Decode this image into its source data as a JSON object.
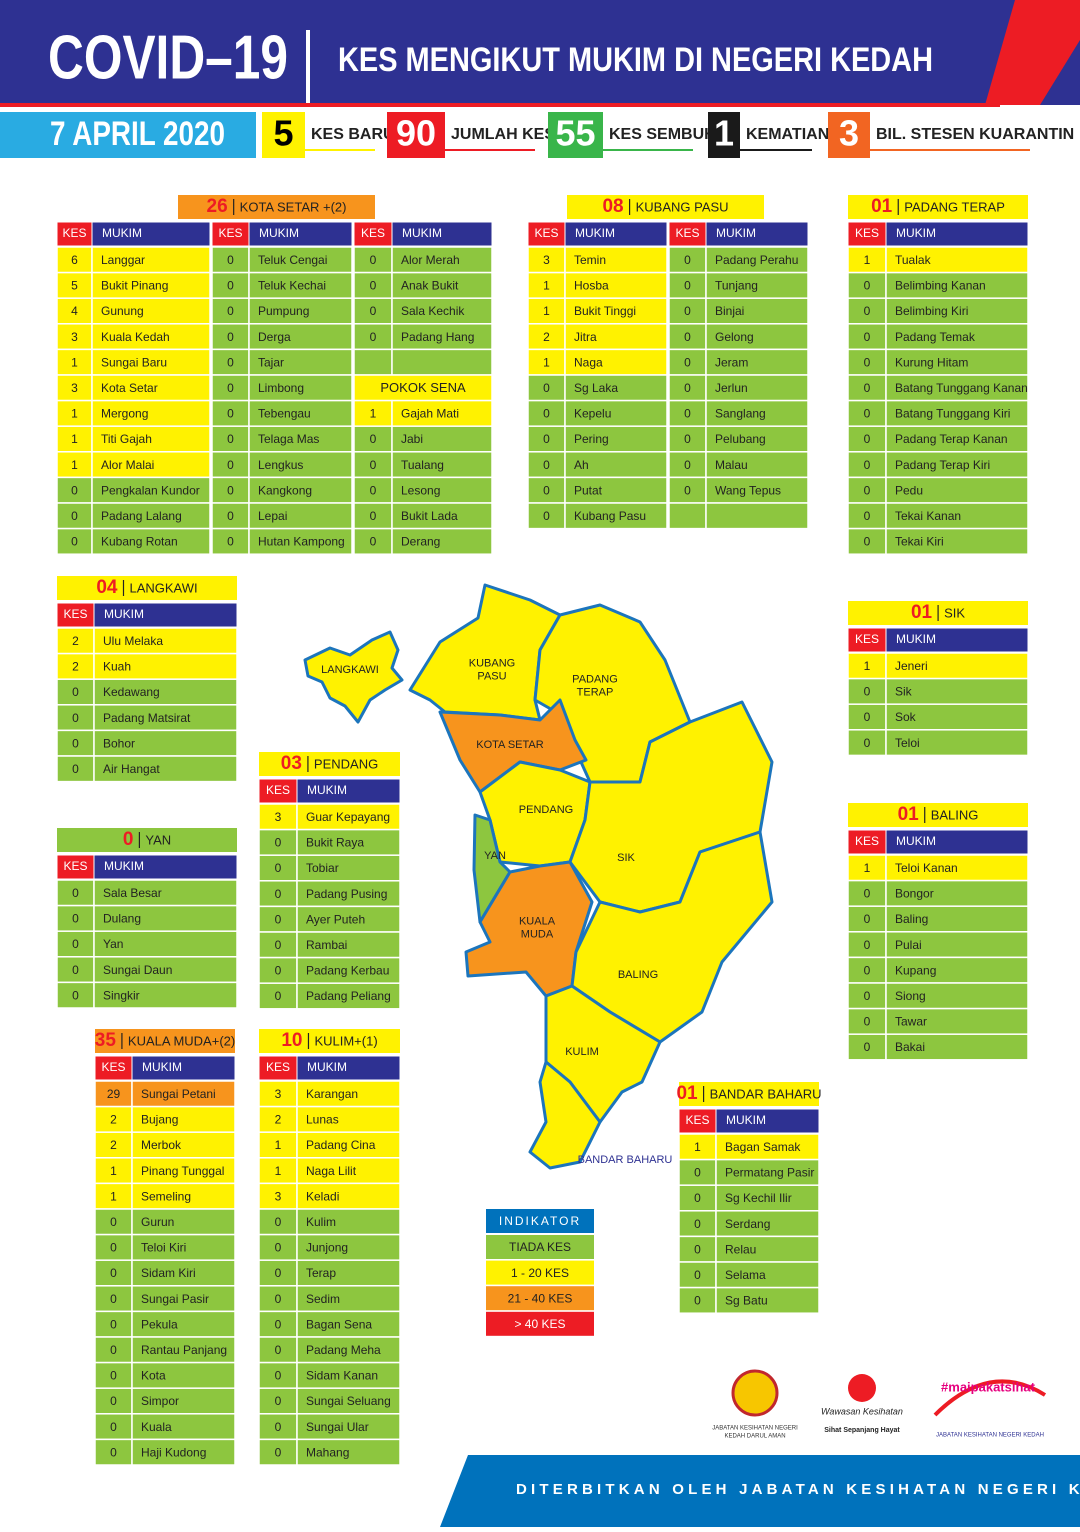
{
  "header": {
    "title": "COVID–19",
    "subtitle": "KES MENGIKUT MUKIM DI NEGERI KEDAH",
    "date": "7 APRIL 2020",
    "stats": [
      {
        "value": 5,
        "label": "KES BARU",
        "color": "#fff200",
        "text_color": "#000000"
      },
      {
        "value": 90,
        "label": "JUMLAH KES",
        "color": "#ed1c24",
        "text_color": "#ffffff"
      },
      {
        "value": 55,
        "label": "KES SEMBUH",
        "color": "#39b54a",
        "text_color": "#ffffff"
      },
      {
        "value": 1,
        "label": "KEMATIAN",
        "color": "#1a1a1a",
        "text_color": "#ffffff"
      },
      {
        "value": 3,
        "label": "BIL. STESEN KUARANTIN",
        "color": "#f26522",
        "text_color": "#ffffff"
      }
    ]
  },
  "column_headers": {
    "kes": "KES",
    "mukim": "MUKIM"
  },
  "districts": [
    {
      "count": "26",
      "name": "KOTA SETAR +(2)",
      "columns": [
        [
          [
            6,
            "Langgar"
          ],
          [
            5,
            "Bukit Pinang"
          ],
          [
            4,
            "Gunung"
          ],
          [
            3,
            "Kuala Kedah"
          ],
          [
            1,
            "Sungai Baru"
          ],
          [
            3,
            "Kota Setar"
          ],
          [
            1,
            "Mergong"
          ],
          [
            1,
            "Titi Gajah"
          ],
          [
            1,
            "Alor Malai"
          ],
          [
            0,
            "Pengkalan Kundor"
          ],
          [
            0,
            "Padang Lalang"
          ],
          [
            0,
            "Kubang Rotan"
          ]
        ],
        [
          [
            0,
            "Teluk Cengai"
          ],
          [
            0,
            "Teluk Kechai"
          ],
          [
            0,
            "Pumpung"
          ],
          [
            0,
            "Derga"
          ],
          [
            0,
            "Tajar"
          ],
          [
            0,
            "Limbong"
          ],
          [
            0,
            "Tebengau"
          ],
          [
            0,
            "Telaga Mas"
          ],
          [
            0,
            "Lengkus"
          ],
          [
            0,
            "Kangkong"
          ],
          [
            0,
            "Lepai"
          ],
          [
            0,
            "Hutan Kampong"
          ]
        ],
        [
          [
            0,
            "Alor Merah"
          ],
          [
            0,
            "Anak Bukit"
          ],
          [
            0,
            "Sala Kechik"
          ],
          [
            0,
            "Padang Hang"
          ],
          null,
          {
            "subheader": "POKOK SENA"
          },
          [
            1,
            "Gajah Mati"
          ],
          [
            0,
            "Jabi"
          ],
          [
            0,
            "Tualang"
          ],
          [
            0,
            "Lesong"
          ],
          [
            0,
            "Bukit Lada"
          ],
          [
            0,
            "Derang"
          ]
        ]
      ]
    },
    {
      "count": "08",
      "name": "KUBANG PASU",
      "columns": [
        [
          [
            3,
            "Temin"
          ],
          [
            1,
            "Hosba"
          ],
          [
            1,
            "Bukit Tinggi"
          ],
          [
            2,
            "Jitra"
          ],
          [
            1,
            "Naga"
          ],
          [
            0,
            "Sg Laka"
          ],
          [
            0,
            "Kepelu"
          ],
          [
            0,
            "Pering"
          ],
          [
            0,
            "Ah"
          ],
          [
            0,
            "Putat"
          ],
          [
            0,
            "Kubang Pasu"
          ]
        ],
        [
          [
            0,
            "Padang Perahu"
          ],
          [
            0,
            "Tunjang"
          ],
          [
            0,
            "Binjai"
          ],
          [
            0,
            "Gelong"
          ],
          [
            0,
            "Jeram"
          ],
          [
            0,
            "Jerlun"
          ],
          [
            0,
            "Sanglang"
          ],
          [
            0,
            "Pelubang"
          ],
          [
            0,
            "Malau"
          ],
          [
            0,
            "Wang Tepus"
          ],
          null
        ]
      ]
    },
    {
      "count": "01",
      "name": "PADANG TERAP",
      "columns": [
        [
          [
            1,
            "Tualak"
          ],
          [
            0,
            "Belimbing Kanan"
          ],
          [
            0,
            "Belimbing Kiri"
          ],
          [
            0,
            "Padang Temak"
          ],
          [
            0,
            "Kurung Hitam"
          ],
          [
            0,
            "Batang Tunggang Kanan"
          ],
          [
            0,
            "Batang Tunggang Kiri"
          ],
          [
            0,
            "Padang Terap Kanan"
          ],
          [
            0,
            "Padang Terap Kiri"
          ],
          [
            0,
            "Pedu"
          ],
          [
            0,
            "Tekai Kanan"
          ],
          [
            0,
            "Tekai Kiri"
          ]
        ]
      ]
    },
    {
      "count": "04",
      "name": "LANGKAWI",
      "columns": [
        [
          [
            2,
            "Ulu Melaka"
          ],
          [
            2,
            "Kuah"
          ],
          [
            0,
            "Kedawang"
          ],
          [
            0,
            "Padang Matsirat"
          ],
          [
            0,
            "Bohor"
          ],
          [
            0,
            "Air Hangat"
          ]
        ]
      ]
    },
    {
      "count": "01",
      "name": "SIK",
      "columns": [
        [
          [
            1,
            "Jeneri"
          ],
          [
            0,
            "Sik"
          ],
          [
            0,
            "Sok"
          ],
          [
            0,
            "Teloi"
          ]
        ]
      ]
    },
    {
      "count": "03",
      "name": "PENDANG",
      "columns": [
        [
          [
            3,
            "Guar Kepayang"
          ],
          [
            0,
            "Bukit Raya"
          ],
          [
            0,
            "Tobiar"
          ],
          [
            0,
            "Padang Pusing"
          ],
          [
            0,
            "Ayer Puteh"
          ],
          [
            0,
            "Rambai"
          ],
          [
            0,
            "Padang Kerbau"
          ],
          [
            0,
            "Padang Peliang"
          ]
        ]
      ]
    },
    {
      "count": "0",
      "name": "YAN",
      "columns": [
        [
          [
            0,
            "Sala Besar"
          ],
          [
            0,
            "Dulang"
          ],
          [
            0,
            "Yan"
          ],
          [
            0,
            "Sungai Daun"
          ],
          [
            0,
            "Singkir"
          ]
        ]
      ]
    },
    {
      "count": "01",
      "name": "BALING",
      "columns": [
        [
          [
            1,
            "Teloi Kanan"
          ],
          [
            0,
            "Bongor"
          ],
          [
            0,
            "Baling"
          ],
          [
            0,
            "Pulai"
          ],
          [
            0,
            "Kupang"
          ],
          [
            0,
            "Siong"
          ],
          [
            0,
            "Tawar"
          ],
          [
            0,
            "Bakai"
          ]
        ]
      ]
    },
    {
      "count": "35",
      "name": "KUALA MUDA+(2)",
      "columns": [
        [
          [
            29,
            "Sungai Petani"
          ],
          [
            2,
            "Bujang"
          ],
          [
            2,
            "Merbok"
          ],
          [
            1,
            "Pinang Tunggal"
          ],
          [
            1,
            "Semeling"
          ],
          [
            0,
            "Gurun"
          ],
          [
            0,
            "Teloi Kiri"
          ],
          [
            0,
            "Sidam Kiri"
          ],
          [
            0,
            "Sungai Pasir"
          ],
          [
            0,
            "Pekula"
          ],
          [
            0,
            "Rantau Panjang"
          ],
          [
            0,
            "Kota"
          ],
          [
            0,
            "Simpor"
          ],
          [
            0,
            "Kuala"
          ],
          [
            0,
            "Haji Kudong"
          ]
        ]
      ]
    },
    {
      "count": "10",
      "name": "KULIM+(1)",
      "columns": [
        [
          [
            3,
            "Karangan"
          ],
          [
            2,
            "Lunas"
          ],
          [
            1,
            "Padang Cina"
          ],
          [
            1,
            "Naga Lilit"
          ],
          [
            3,
            "Keladi"
          ],
          [
            0,
            "Kulim"
          ],
          [
            0,
            "Junjong"
          ],
          [
            0,
            "Terap"
          ],
          [
            0,
            "Sedim"
          ],
          [
            0,
            "Bagan Sena"
          ],
          [
            0,
            "Padang Meha"
          ],
          [
            0,
            "Sidam Kanan"
          ],
          [
            0,
            "Sungai Seluang"
          ],
          [
            0,
            "Sungai Ular"
          ],
          [
            0,
            "Mahang"
          ]
        ]
      ]
    },
    {
      "count": "01",
      "name": "BANDAR BAHARU",
      "columns": [
        [
          [
            1,
            "Bagan Samak"
          ],
          [
            0,
            "Permatang Pasir"
          ],
          [
            0,
            "Sg Kechil Ilir"
          ],
          [
            0,
            "Serdang"
          ],
          [
            0,
            "Relau"
          ],
          [
            0,
            "Selama"
          ],
          [
            0,
            "Sg Batu"
          ]
        ]
      ]
    }
  ],
  "map": {
    "regions": [
      {
        "label": [
          "LANGKAWI"
        ],
        "color": "#fff200"
      },
      {
        "label": [
          "KUBANG",
          "PASU"
        ],
        "color": "#fff200"
      },
      {
        "label": [
          "PADANG",
          "TERAP"
        ],
        "color": "#fff200"
      },
      {
        "label": [
          "KOTA SETAR"
        ],
        "color": "#f7941d"
      },
      {
        "label": [
          "PENDANG"
        ],
        "color": "#fff200"
      },
      {
        "label": [
          "YAN"
        ],
        "color": "#8dc63f"
      },
      {
        "label": [
          "SIK"
        ],
        "color": "#fff200"
      },
      {
        "label": [
          "KUALA",
          "MUDA"
        ],
        "color": "#f7941d"
      },
      {
        "label": [
          "BALING"
        ],
        "color": "#fff200"
      },
      {
        "label": [
          "KULIM"
        ],
        "color": "#fff200"
      },
      {
        "label": [
          "BANDAR BAHARU"
        ],
        "color": "#fff200"
      }
    ]
  },
  "legend": {
    "title": "INDIKATOR",
    "items": [
      {
        "label": "TIADA KES",
        "color": "#8dc63f"
      },
      {
        "label": "1 - 20 KES",
        "color": "#fff200"
      },
      {
        "label": "21 - 40 KES",
        "color": "#f7941d"
      },
      {
        "label": "> 40 KES",
        "color": "#ed1c24"
      }
    ]
  },
  "logos": {
    "first": [
      "JABATAN KESIHATAN NEGERI",
      "KEDAH DARUL AMAN"
    ],
    "second": [
      "Wawasan Kesihatan",
      "Sihat Sepanjang Hayat"
    ],
    "third": [
      "#maipakatsihat",
      "JABATAN KESIHATAN NEGERI KEDAH"
    ]
  },
  "footer": "DITERBITKAN OLEH JABATAN KESIHATAN NEGERI KEDAH"
}
